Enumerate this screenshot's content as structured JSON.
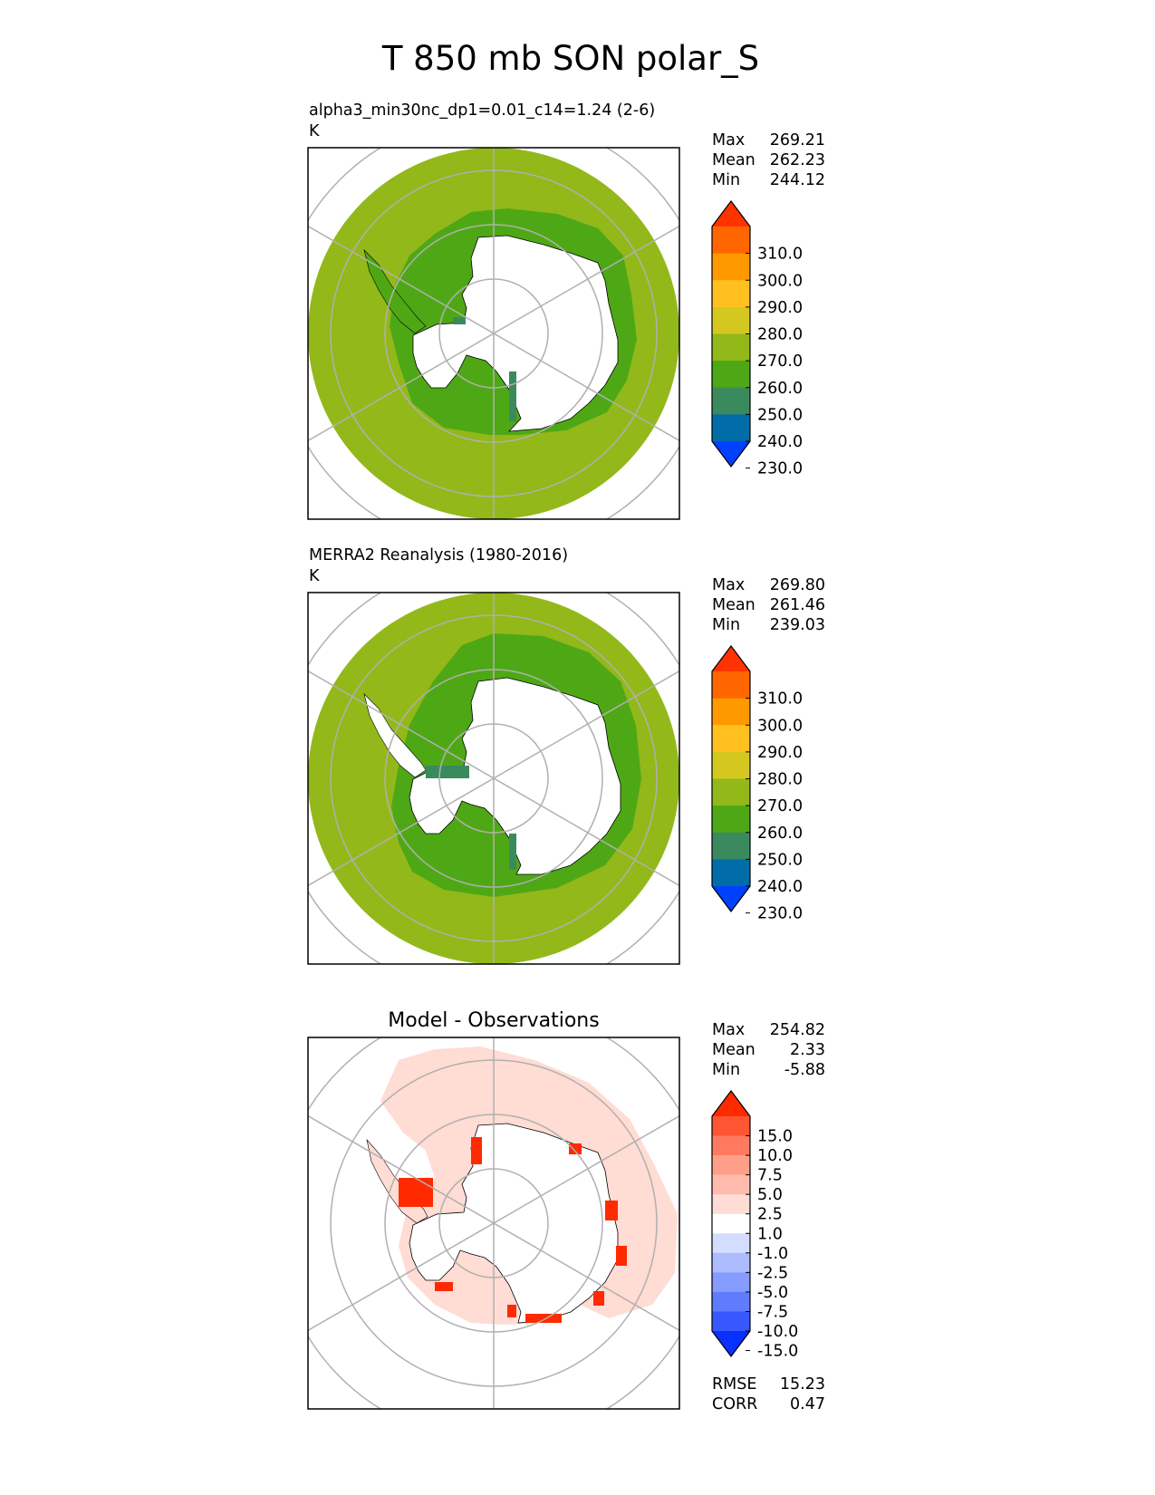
{
  "figure": {
    "title": "T 850 mb SON polar_S"
  },
  "chart_data": [
    {
      "type": "heatmap",
      "projection": "south-polar-stereographic",
      "title_line1": "alpha3_min30nc_dp1=0.01_c14=1.24 (2-6)",
      "title_line2": "K",
      "stats": [
        {
          "label": "Max",
          "value": "269.21"
        },
        {
          "label": "Mean",
          "value": "262.23"
        },
        {
          "label": "Min",
          "value": "244.12"
        }
      ],
      "colorbar": {
        "ticks": [
          "310.0",
          "300.0",
          "290.0",
          "280.0",
          "270.0",
          "260.0",
          "250.0",
          "240.0",
          "230.0"
        ],
        "colors": [
          "#ff3300",
          "#ff6600",
          "#ff9900",
          "#ffc020",
          "#d4c820",
          "#93b81a",
          "#4ea815",
          "#3b8a5e",
          "#006ca8",
          "#0040ff"
        ],
        "extend": "both"
      },
      "field_colors": {
        "outer": "#93b81a",
        "inner": "#4ea815",
        "cold": "#3b8a5e"
      }
    },
    {
      "type": "heatmap",
      "projection": "south-polar-stereographic",
      "title_line1": "MERRA2 Reanalysis (1980-2016)",
      "title_line2": "K",
      "stats": [
        {
          "label": "Max",
          "value": "269.80"
        },
        {
          "label": "Mean",
          "value": "261.46"
        },
        {
          "label": "Min",
          "value": "239.03"
        }
      ],
      "colorbar": {
        "ticks": [
          "310.0",
          "300.0",
          "290.0",
          "280.0",
          "270.0",
          "260.0",
          "250.0",
          "240.0",
          "230.0"
        ],
        "colors": [
          "#ff3300",
          "#ff6600",
          "#ff9900",
          "#ffc020",
          "#d4c820",
          "#93b81a",
          "#4ea815",
          "#3b8a5e",
          "#006ca8",
          "#0040ff"
        ],
        "extend": "both"
      },
      "field_colors": {
        "outer": "#93b81a",
        "inner": "#4ea815",
        "cold": "#3b8a5e"
      }
    },
    {
      "type": "heatmap",
      "projection": "south-polar-stereographic",
      "title": "Model - Observations",
      "stats": [
        {
          "label": "Max",
          "value": "254.82"
        },
        {
          "label": "Mean",
          "value": "2.33"
        },
        {
          "label": "Min",
          "value": "-5.88"
        }
      ],
      "colorbar": {
        "ticks": [
          "15.0",
          "10.0",
          "7.5",
          "5.0",
          "2.5",
          "1.0",
          "-1.0",
          "-2.5",
          "-5.0",
          "-7.5",
          "-10.0",
          "-15.0"
        ],
        "colors": [
          "#ff2a00",
          "#ff5533",
          "#ff7a60",
          "#ff9f8a",
          "#ffbcae",
          "#ffdcd4",
          "#ffffff",
          "#d4dcff",
          "#adbcff",
          "#869cff",
          "#5f7cff",
          "#3858ff",
          "#0a30ff"
        ],
        "extend": "both"
      },
      "field_colors": {
        "outer": "#ffdcd4",
        "inner": "#ffdcd4",
        "cold": "#ff2a00"
      },
      "metrics": [
        {
          "label": "RMSE",
          "value": "15.23"
        },
        {
          "label": "CORR",
          "value": "0.47"
        }
      ]
    }
  ]
}
